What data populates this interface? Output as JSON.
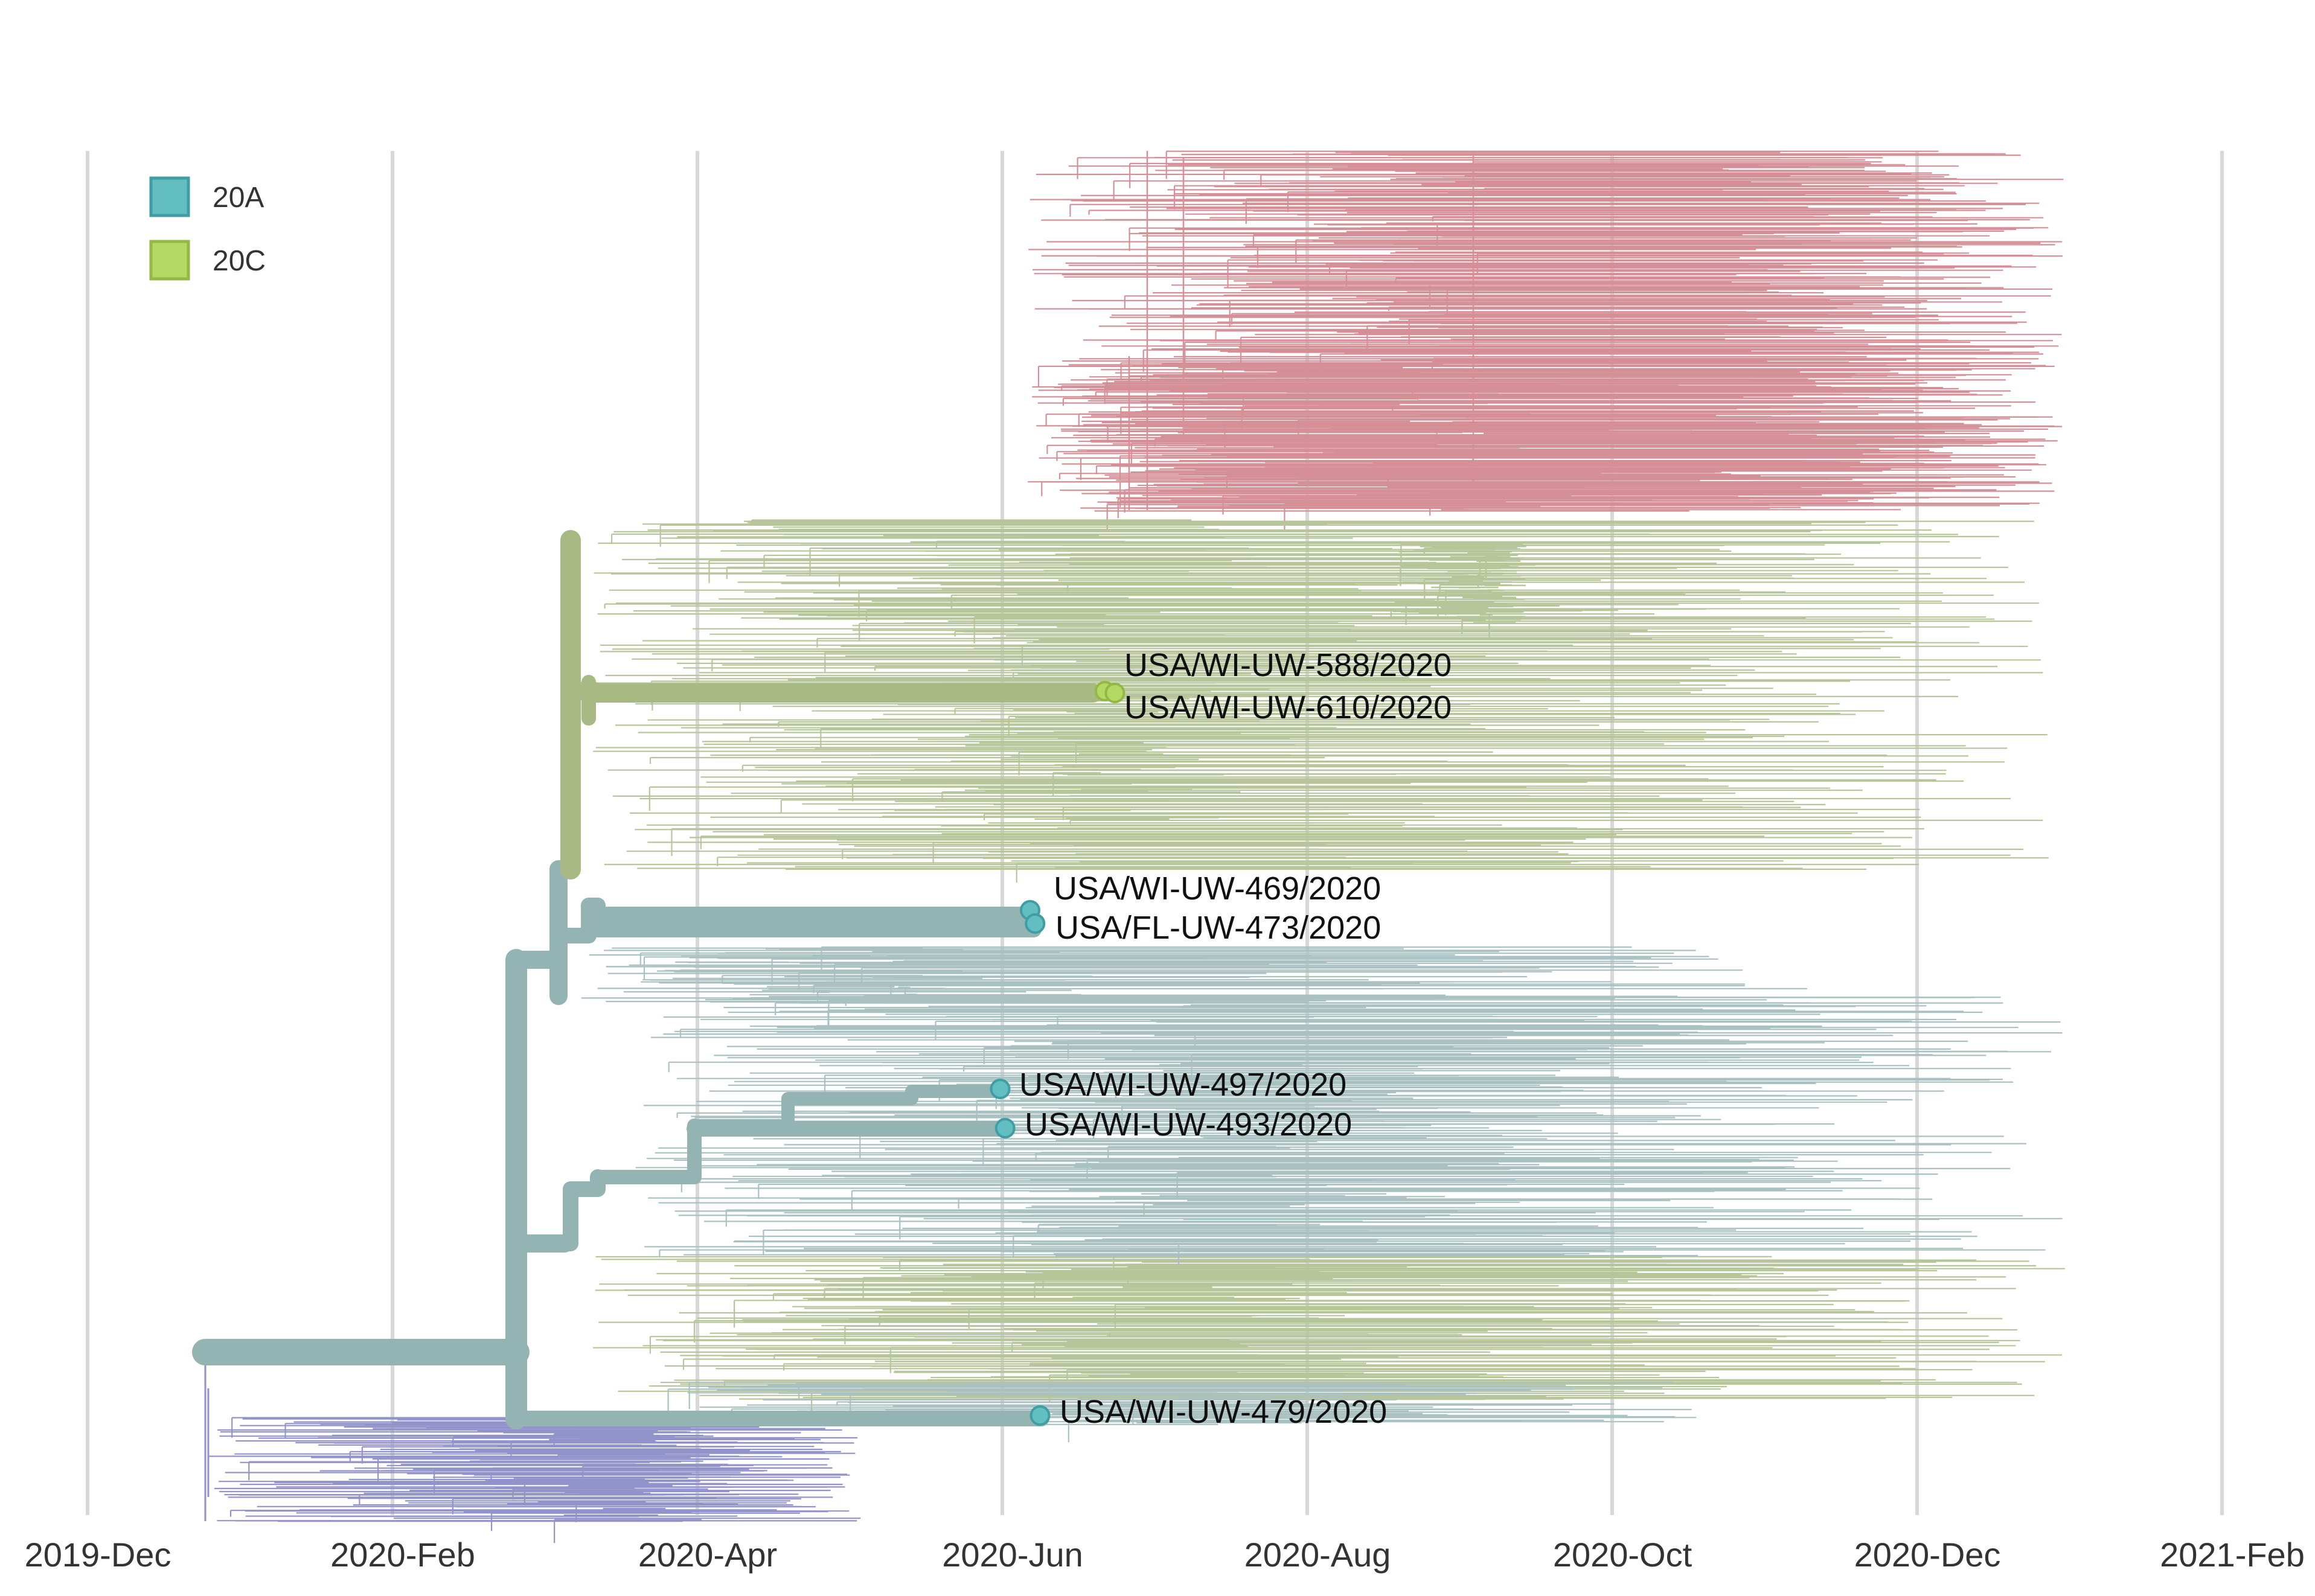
{
  "colors": {
    "clade_20A": "#63bec1",
    "clade_20C": "#b4d963",
    "branch_20A": "#94b4b4",
    "branch_20C": "#a9b983",
    "context_red": "#d58f96",
    "context_green": "#b7c69a",
    "context_teal": "#a9c1c1",
    "context_blue": "#9393cc",
    "grid": "#d8d8d8"
  },
  "legend": [
    {
      "label": "20A",
      "color_key": "clade_20A"
    },
    {
      "label": "20C",
      "color_key": "clade_20C"
    }
  ],
  "time_axis": {
    "ticks": [
      "2019-Dec",
      "2020-Feb",
      "2020-Apr",
      "2020-Jun",
      "2020-Aug",
      "2020-Oct",
      "2020-Dec",
      "2021-Feb"
    ]
  },
  "tips": [
    {
      "name": "USA/WI-UW-588/2020",
      "date": "2020-06-22",
      "clade": "20C"
    },
    {
      "name": "USA/WI-UW-610/2020",
      "date": "2020-06-24",
      "clade": "20C"
    },
    {
      "name": "USA/WI-UW-469/2020",
      "date": "2020-06-07",
      "clade": "20A"
    },
    {
      "name": "USA/FL-UW-473/2020",
      "date": "2020-06-08",
      "clade": "20A"
    },
    {
      "name": "USA/WI-UW-497/2020",
      "date": "2020-06-01",
      "clade": "20A"
    },
    {
      "name": "USA/WI-UW-493/2020",
      "date": "2020-06-02",
      "clade": "20A"
    },
    {
      "name": "USA/WI-UW-479/2020",
      "date": "2020-06-09",
      "clade": "20A"
    }
  ]
}
